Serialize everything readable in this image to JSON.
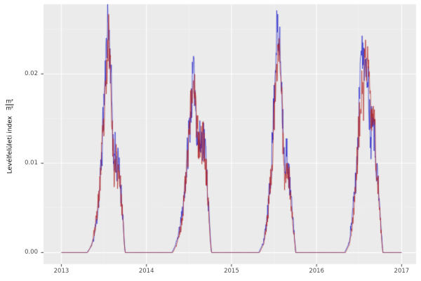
{
  "figure": {
    "background": "#ffffff"
  },
  "chart_data": {
    "type": "line",
    "title": "",
    "xlabel": "",
    "ylabel": "Levélfelületi index m²/m²",
    "ylabel_prefix": "Levélfelületi index",
    "ylabel_unit_numerator": "m²",
    "ylabel_unit_denominator": "m²",
    "x_ticks": [
      2013,
      2014,
      2015,
      2016,
      2017
    ],
    "x_tick_labels": [
      "2013",
      "2014",
      "2015",
      "2016",
      "2017"
    ],
    "y_ticks": [
      0,
      0.01,
      0.02
    ],
    "y_tick_labels": [
      "0.00",
      "0.01",
      "0.02"
    ],
    "x_minor_ticks": [
      2013.5,
      2014.5,
      2015.5,
      2016.5
    ],
    "y_minor_ticks": [
      0.005,
      0.015,
      0.025
    ],
    "xlim": [
      2012.79,
      2017.17
    ],
    "ylim": [
      -0.0013,
      0.0278
    ],
    "grid": true,
    "legend": "none",
    "panel_background": "#ebebeb",
    "grid_major_color": "#ffffff",
    "grid_minor_color": "#f5f5f5",
    "tick_mark_color": "#333333",
    "tick_label_color": "#4d4d4d",
    "noise": {
      "amplitude": 0.0026,
      "step_years": 0.004,
      "seeds": [
        11,
        23
      ]
    },
    "series": [
      {
        "name": "series-blue",
        "color": "#2020cc",
        "points": [
          [
            2013.0,
            0
          ],
          [
            2013.3,
            0
          ],
          [
            2013.34,
            0.0005
          ],
          [
            2013.38,
            0.0015
          ],
          [
            2013.42,
            0.004
          ],
          [
            2013.45,
            0.007
          ],
          [
            2013.48,
            0.012
          ],
          [
            2013.5,
            0.0165
          ],
          [
            2013.52,
            0.0205
          ],
          [
            2013.545,
            0.0263
          ],
          [
            2013.56,
            0.0245
          ],
          [
            2013.58,
            0.0205
          ],
          [
            2013.6,
            0.0155
          ],
          [
            2013.615,
            0.009
          ],
          [
            2013.63,
            0.012
          ],
          [
            2013.65,
            0.0095
          ],
          [
            2013.67,
            0.01
          ],
          [
            2013.7,
            0.007
          ],
          [
            2013.72,
            0.0045
          ],
          [
            2013.74,
            0.0012
          ],
          [
            2013.75,
            0
          ],
          [
            2014.3,
            0
          ],
          [
            2014.35,
            0.001
          ],
          [
            2014.4,
            0.003
          ],
          [
            2014.44,
            0.006
          ],
          [
            2014.47,
            0.0095
          ],
          [
            2014.5,
            0.0135
          ],
          [
            2014.53,
            0.017
          ],
          [
            2014.55,
            0.0205
          ],
          [
            2014.57,
            0.018
          ],
          [
            2014.59,
            0.0145
          ],
          [
            2014.61,
            0.012
          ],
          [
            2014.64,
            0.0125
          ],
          [
            2014.67,
            0.013
          ],
          [
            2014.7,
            0.0105
          ],
          [
            2014.72,
            0.007
          ],
          [
            2014.74,
            0.0035
          ],
          [
            2014.755,
            0.001
          ],
          [
            2014.765,
            0
          ],
          [
            2015.32,
            0
          ],
          [
            2015.37,
            0.001
          ],
          [
            2015.41,
            0.003
          ],
          [
            2015.45,
            0.007
          ],
          [
            2015.48,
            0.012
          ],
          [
            2015.5,
            0.017
          ],
          [
            2015.52,
            0.022
          ],
          [
            2015.535,
            0.0258
          ],
          [
            2015.55,
            0.023
          ],
          [
            2015.565,
            0.0235
          ],
          [
            2015.59,
            0.019
          ],
          [
            2015.61,
            0.013
          ],
          [
            2015.63,
            0.008
          ],
          [
            2015.65,
            0.012
          ],
          [
            2015.67,
            0.009
          ],
          [
            2015.7,
            0.006
          ],
          [
            2015.73,
            0.003
          ],
          [
            2015.755,
            0
          ],
          [
            2016.33,
            0
          ],
          [
            2016.38,
            0.001
          ],
          [
            2016.42,
            0.004
          ],
          [
            2016.46,
            0.008
          ],
          [
            2016.49,
            0.013
          ],
          [
            2016.51,
            0.02
          ],
          [
            2016.525,
            0.0252
          ],
          [
            2016.54,
            0.021
          ],
          [
            2016.555,
            0.0225
          ],
          [
            2016.58,
            0.019
          ],
          [
            2016.6,
            0.021
          ],
          [
            2016.62,
            0.016
          ],
          [
            2016.64,
            0.013
          ],
          [
            2016.66,
            0.0175
          ],
          [
            2016.68,
            0.013
          ],
          [
            2016.7,
            0.0105
          ],
          [
            2016.72,
            0.008
          ],
          [
            2016.745,
            0.0045
          ],
          [
            2016.77,
            0.0012
          ],
          [
            2016.78,
            0
          ],
          [
            2017.0,
            0
          ]
        ]
      },
      {
        "name": "series-red",
        "color": "#b22222",
        "points": [
          [
            2013.0,
            0
          ],
          [
            2013.31,
            0
          ],
          [
            2013.36,
            0.001
          ],
          [
            2013.4,
            0.003
          ],
          [
            2013.44,
            0.006
          ],
          [
            2013.47,
            0.01
          ],
          [
            2013.5,
            0.0145
          ],
          [
            2013.53,
            0.019
          ],
          [
            2013.555,
            0.0248
          ],
          [
            2013.57,
            0.022
          ],
          [
            2013.585,
            0.019
          ],
          [
            2013.6,
            0.014
          ],
          [
            2013.62,
            0.0085
          ],
          [
            2013.64,
            0.011
          ],
          [
            2013.66,
            0.009
          ],
          [
            2013.68,
            0.0095
          ],
          [
            2013.7,
            0.0065
          ],
          [
            2013.72,
            0.004
          ],
          [
            2013.74,
            0.001
          ],
          [
            2013.75,
            0
          ],
          [
            2014.31,
            0
          ],
          [
            2014.36,
            0.001
          ],
          [
            2014.41,
            0.003
          ],
          [
            2014.45,
            0.007
          ],
          [
            2014.48,
            0.011
          ],
          [
            2014.51,
            0.015
          ],
          [
            2014.54,
            0.018
          ],
          [
            2014.56,
            0.0198
          ],
          [
            2014.58,
            0.016
          ],
          [
            2014.6,
            0.013
          ],
          [
            2014.63,
            0.0115
          ],
          [
            2014.66,
            0.0128
          ],
          [
            2014.69,
            0.011
          ],
          [
            2014.71,
            0.008
          ],
          [
            2014.73,
            0.005
          ],
          [
            2014.75,
            0.0015
          ],
          [
            2014.765,
            0
          ],
          [
            2015.33,
            0
          ],
          [
            2015.38,
            0.001
          ],
          [
            2015.42,
            0.0035
          ],
          [
            2015.46,
            0.008
          ],
          [
            2015.49,
            0.013
          ],
          [
            2015.52,
            0.018
          ],
          [
            2015.545,
            0.022
          ],
          [
            2015.56,
            0.024
          ],
          [
            2015.575,
            0.021
          ],
          [
            2015.59,
            0.017
          ],
          [
            2015.61,
            0.012
          ],
          [
            2015.63,
            0.0075
          ],
          [
            2015.655,
            0.011
          ],
          [
            2015.68,
            0.008
          ],
          [
            2015.7,
            0.0055
          ],
          [
            2015.73,
            0.0025
          ],
          [
            2015.755,
            0
          ],
          [
            2016.34,
            0
          ],
          [
            2016.39,
            0.001
          ],
          [
            2016.43,
            0.004
          ],
          [
            2016.47,
            0.009
          ],
          [
            2016.5,
            0.014
          ],
          [
            2016.53,
            0.018
          ],
          [
            2016.55,
            0.016
          ],
          [
            2016.57,
            0.0235
          ],
          [
            2016.59,
            0.02
          ],
          [
            2016.61,
            0.0225
          ],
          [
            2016.63,
            0.017
          ],
          [
            2016.65,
            0.014
          ],
          [
            2016.67,
            0.016
          ],
          [
            2016.69,
            0.0125
          ],
          [
            2016.71,
            0.009
          ],
          [
            2016.73,
            0.0065
          ],
          [
            2016.75,
            0.0035
          ],
          [
            2016.77,
            0.001
          ],
          [
            2016.78,
            0
          ],
          [
            2017.0,
            0
          ]
        ]
      }
    ]
  }
}
